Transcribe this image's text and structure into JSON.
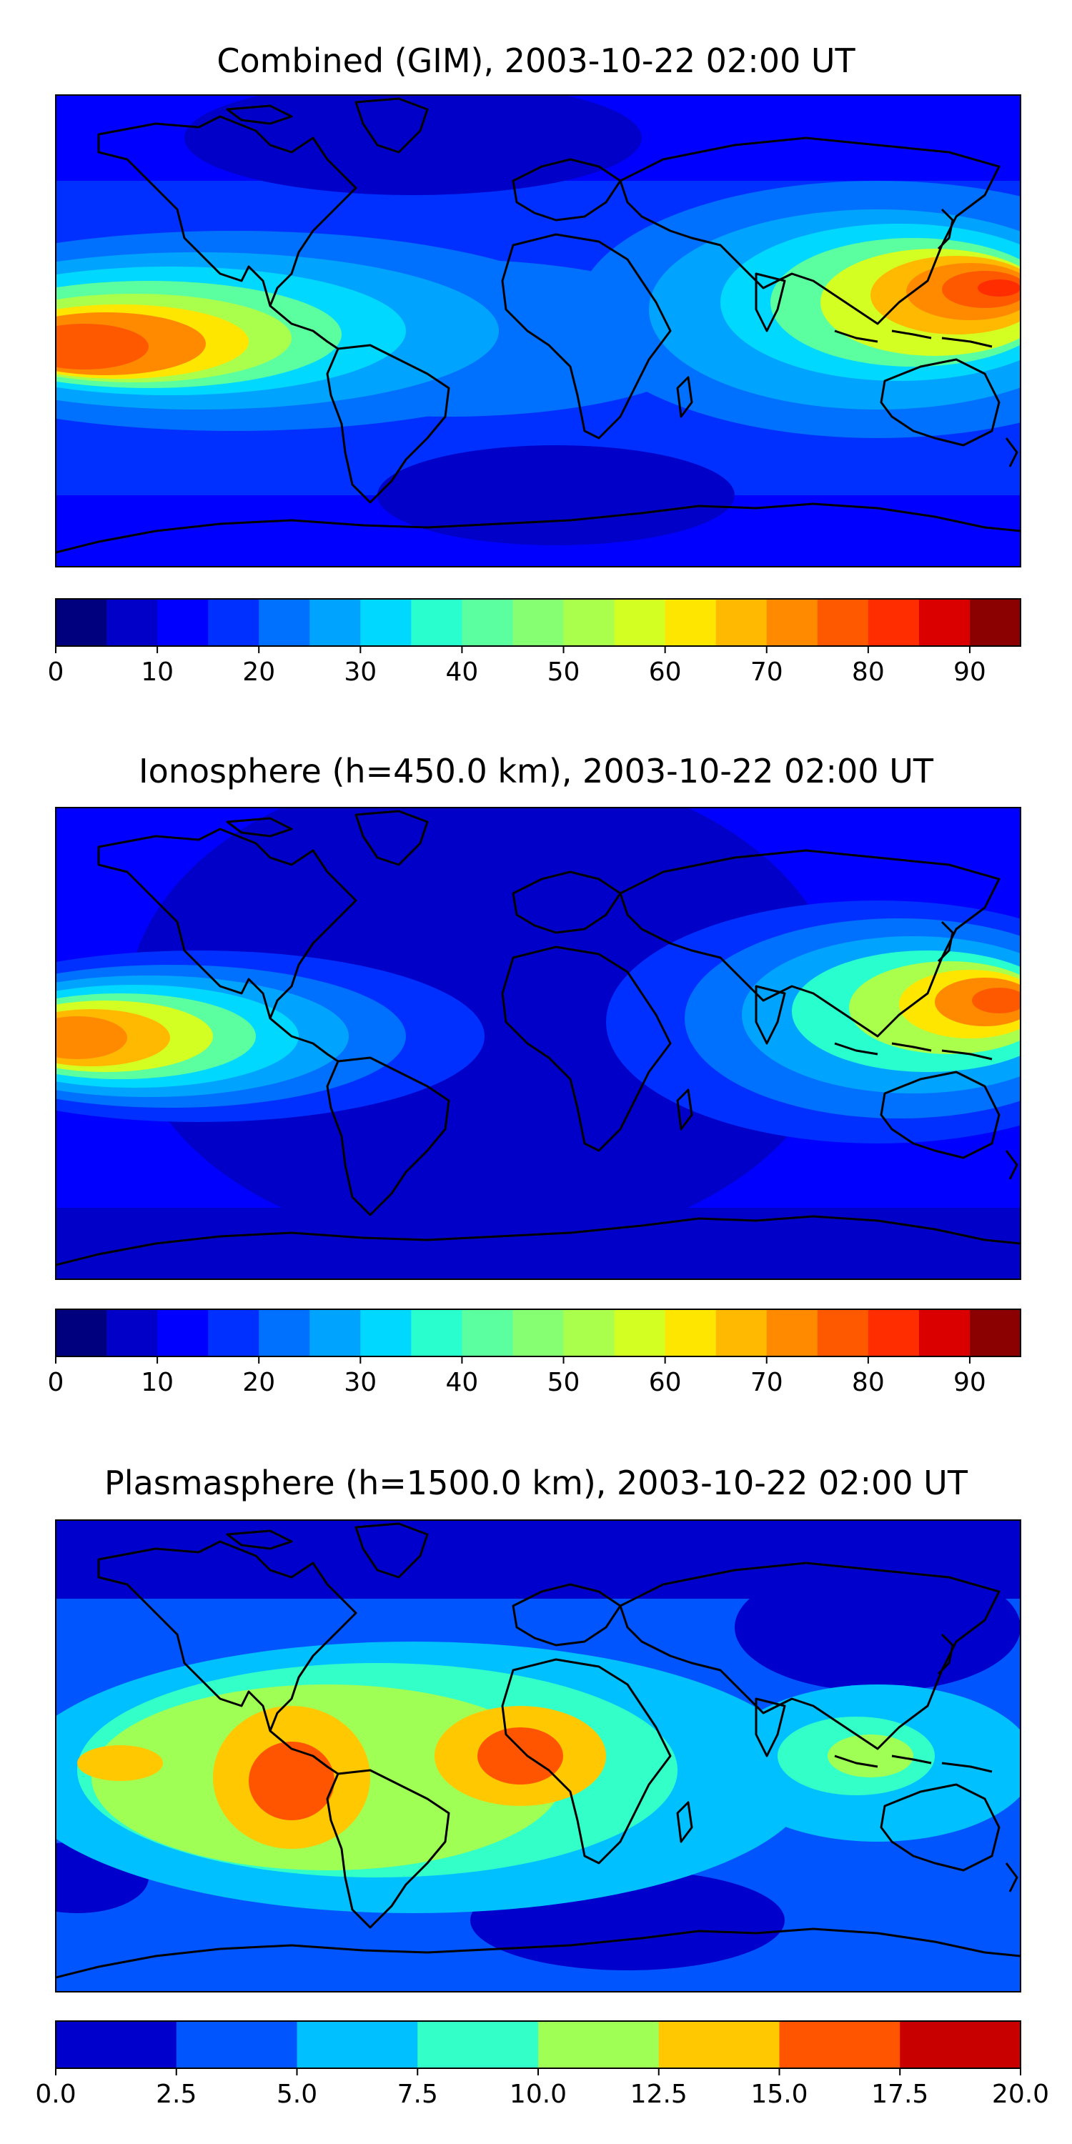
{
  "panels": [
    {
      "title": "Combined (GIM), 2003-10-22 02:00 UT",
      "colorbar": {
        "colors": [
          "#00007f",
          "#0000c8",
          "#0000ff",
          "#0030ff",
          "#0070ff",
          "#00a4ff",
          "#00d8ff",
          "#29ffce",
          "#5cffa0",
          "#86ff73",
          "#aaff4d",
          "#d4ff23",
          "#ffe600",
          "#ffb900",
          "#ff8a00",
          "#ff5900",
          "#ff2d00",
          "#db0000",
          "#8b0000"
        ],
        "range": [
          0,
          95
        ],
        "tick_values": [
          0,
          10,
          20,
          30,
          40,
          50,
          60,
          70,
          80,
          90
        ],
        "tick_labels": [
          "0",
          "10",
          "20",
          "30",
          "40",
          "50",
          "60",
          "70",
          "80",
          "90"
        ]
      }
    },
    {
      "title": "Ionosphere  (h=450.0 km), 2003-10-22 02:00 UT",
      "colorbar": {
        "colors": [
          "#00007f",
          "#0000c8",
          "#0000ff",
          "#0030ff",
          "#0070ff",
          "#00a4ff",
          "#00d8ff",
          "#29ffce",
          "#5cffa0",
          "#86ff73",
          "#aaff4d",
          "#d4ff23",
          "#ffe600",
          "#ffb900",
          "#ff8a00",
          "#ff5900",
          "#ff2d00",
          "#db0000",
          "#8b0000"
        ],
        "range": [
          0,
          95
        ],
        "tick_values": [
          0,
          10,
          20,
          30,
          40,
          50,
          60,
          70,
          80,
          90
        ],
        "tick_labels": [
          "0",
          "10",
          "20",
          "30",
          "40",
          "50",
          "60",
          "70",
          "80",
          "90"
        ]
      }
    },
    {
      "title": "Plasmasphere (h=1500.0 km), 2003-10-22 02:00 UT",
      "colorbar": {
        "colors": [
          "#0000cc",
          "#0055ff",
          "#00c0ff",
          "#33ffc8",
          "#a0ff55",
          "#ffc800",
          "#ff5500",
          "#c80000"
        ],
        "range": [
          0,
          20
        ],
        "tick_values": [
          0,
          2.5,
          5,
          7.5,
          10,
          12.5,
          15,
          17.5,
          20
        ],
        "tick_labels": [
          "0.0",
          "2.5",
          "5.0",
          "7.5",
          "10.0",
          "12.5",
          "15.0",
          "17.5",
          "20.0"
        ]
      }
    }
  ]
}
